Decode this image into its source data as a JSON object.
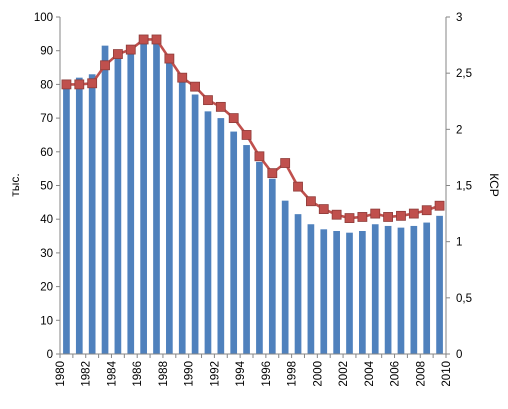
{
  "chart_data": {
    "type": "bar+line",
    "title": "",
    "grid": false,
    "legend": "none",
    "x_tick_labels": [
      "1980",
      "1982",
      "1984",
      "1986",
      "1988",
      "1990",
      "1992",
      "1994",
      "1996",
      "1998",
      "2000",
      "2002",
      "2004",
      "2006",
      "2008",
      "2010"
    ],
    "xlim": [
      1980,
      2010
    ],
    "left_axis": {
      "label": "тыс.",
      "ylim": [
        0,
        100
      ],
      "tick_labels": [
        "0",
        "10",
        "20",
        "30",
        "40",
        "50",
        "60",
        "70",
        "80",
        "90",
        "100"
      ]
    },
    "right_axis": {
      "label": "КСР",
      "ylim": [
        0,
        3
      ],
      "tick_labels": [
        "0",
        "0,5",
        "1",
        "1,5",
        "2",
        "2,5",
        "3"
      ]
    },
    "series": [
      {
        "kind": "bar",
        "axis": "left",
        "color": "#4F81BD",
        "x": [
          1980,
          1981,
          1982,
          1983,
          1984,
          1985,
          1986,
          1987,
          1988,
          1989,
          1990,
          1991,
          1992,
          1993,
          1994,
          1995,
          1996,
          1997,
          1998,
          1999,
          2000,
          2001,
          2002,
          2003,
          2004,
          2005,
          2006,
          2007,
          2008,
          2009
        ],
        "values": [
          79.5,
          82,
          83,
          91.5,
          89,
          90,
          92,
          92,
          87,
          83,
          77,
          72,
          70,
          66,
          62,
          57,
          52,
          45.5,
          41.5,
          38.5,
          37,
          36.5,
          36,
          36.5,
          38.5,
          38,
          37.5,
          38,
          39,
          41
        ]
      },
      {
        "kind": "line",
        "axis": "right",
        "color": "#C0504D",
        "x": [
          1980,
          1981,
          1982,
          1983,
          1984,
          1985,
          1986,
          1987,
          1988,
          1989,
          1990,
          1991,
          1992,
          1993,
          1994,
          1995,
          1996,
          1997,
          1998,
          1999,
          2000,
          2001,
          2002,
          2003,
          2004,
          2005,
          2006,
          2007,
          2008,
          2009
        ],
        "values": [
          2.4,
          2.4,
          2.41,
          2.57,
          2.67,
          2.71,
          2.8,
          2.8,
          2.63,
          2.46,
          2.38,
          2.26,
          2.2,
          2.1,
          1.95,
          1.76,
          1.61,
          1.7,
          1.49,
          1.36,
          1.29,
          1.24,
          1.21,
          1.22,
          1.25,
          1.22,
          1.23,
          1.25,
          1.28,
          1.32
        ]
      }
    ]
  }
}
